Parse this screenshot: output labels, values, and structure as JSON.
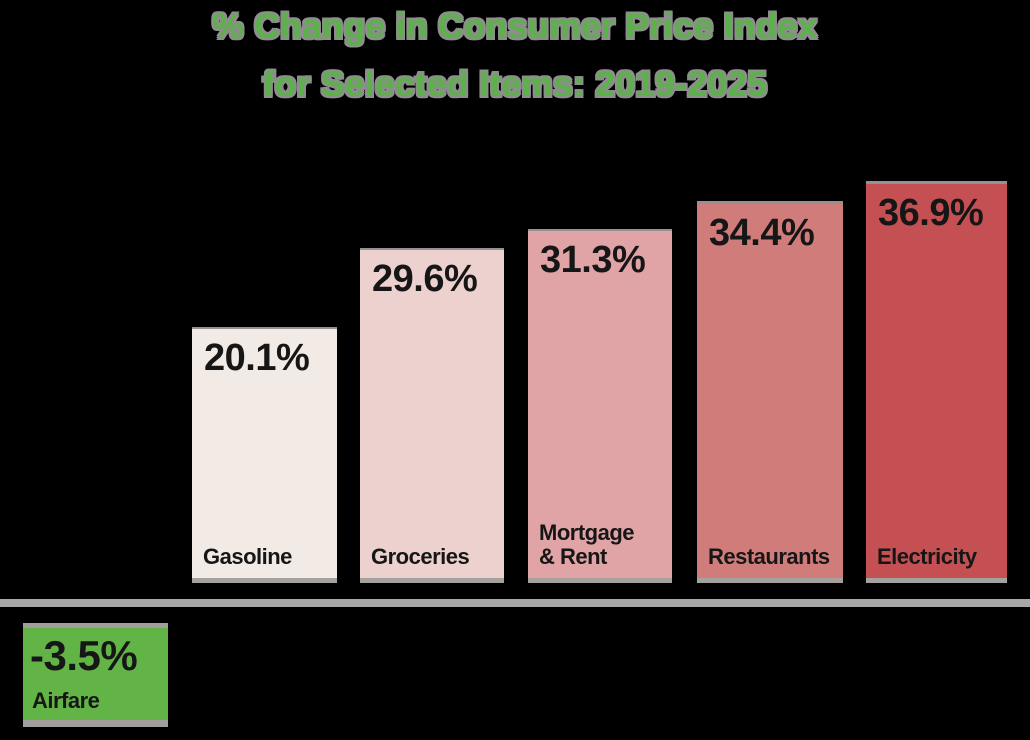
{
  "chart_data": {
    "type": "bar",
    "title": "% Change in Consumer Price Index for Selected Items: 2019-2025",
    "title_lines": [
      "% Change in Consumer Price Index",
      "for Selected Items: 2019-2025"
    ],
    "categories": [
      "Gasoline",
      "Groceries",
      "Mortgage & Rent",
      "Restaurants",
      "Electricity",
      "Airfare"
    ],
    "values": [
      20.1,
      29.6,
      31.3,
      34.4,
      36.9,
      -3.5
    ],
    "unit": "%",
    "xlabel": "",
    "ylabel": "",
    "grid": false,
    "legend": false,
    "baseline": 0,
    "layout": "negative bar (Airfare) rendered below the x-axis line",
    "colors": {
      "background": "#000000",
      "title_text": "#5db04c",
      "title_outline": "#8e8e8e",
      "axis_line": "#a9a7a5",
      "label_text": "#161616",
      "bar_fills": [
        "#f2eae5",
        "#ecd1ce",
        "#e0a3a6",
        "#d07c7b",
        "#c55053",
        "#63b446"
      ]
    },
    "bars": [
      {
        "label": "Gasoline",
        "display_label": "Gasoline",
        "value": 20.1,
        "value_label": "20.1%",
        "color": "#f2eae5"
      },
      {
        "label": "Groceries",
        "display_label": "Groceries",
        "value": 29.6,
        "value_label": "29.6%",
        "color": "#ecd1ce"
      },
      {
        "label": "Mortgage & Rent",
        "display_label": "Mortgage\n& Rent",
        "value": 31.3,
        "value_label": "31.3%",
        "color": "#e0a3a6"
      },
      {
        "label": "Restaurants",
        "display_label": "Restaurants",
        "value": 34.4,
        "value_label": "34.4%",
        "color": "#d07c7b"
      },
      {
        "label": "Electricity",
        "display_label": "Electricity",
        "value": 36.9,
        "value_label": "36.9%",
        "color": "#c55053"
      },
      {
        "label": "Airfare",
        "display_label": "Airfare",
        "value": -3.5,
        "value_label": "-3.5%",
        "color": "#63b446"
      }
    ]
  }
}
